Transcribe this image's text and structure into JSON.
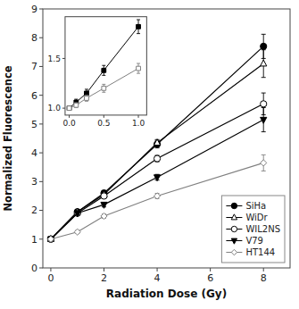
{
  "chart_data": [
    {
      "type": "line",
      "xlabel": "Radiation Dose (Gy)",
      "ylabel": "Normalized Fluorescence",
      "xlim": [
        -0.3,
        9
      ],
      "ylim": [
        0,
        9
      ],
      "xticks": [
        0,
        2,
        4,
        6,
        8
      ],
      "yticks": [
        0,
        1,
        2,
        3,
        4,
        5,
        6,
        7,
        8,
        9
      ],
      "grid": false,
      "legend": "lower right",
      "x": [
        0,
        1,
        2,
        4,
        8
      ],
      "series": [
        {
          "name": "SiHa",
          "color": "black",
          "marker": "circle",
          "values": [
            1.0,
            1.95,
            2.6,
            4.3,
            7.7
          ],
          "yerr": [
            0.04,
            0.07,
            0.09,
            0.13,
            0.42
          ]
        },
        {
          "name": "WiDr",
          "color": "black",
          "marker": "open-triangle-up",
          "values": [
            1.0,
            1.95,
            2.55,
            4.35,
            7.1
          ],
          "yerr": [
            0.04,
            0.07,
            0.09,
            0.11,
            0.48
          ]
        },
        {
          "name": "WIL2NS",
          "color": "black",
          "marker": "open-circle",
          "values": [
            1.0,
            1.9,
            2.5,
            3.8,
            5.7
          ],
          "yerr": [
            0.04,
            0.06,
            0.08,
            0.11,
            0.38
          ]
        },
        {
          "name": "V79",
          "color": "black",
          "marker": "triangle-down",
          "values": [
            1.0,
            1.9,
            2.2,
            3.15,
            5.15
          ],
          "yerr": [
            0.04,
            0.06,
            0.08,
            0.1,
            0.42
          ]
        },
        {
          "name": "HT144",
          "color": "gray",
          "marker": "open-diamond",
          "values": [
            1.0,
            1.25,
            1.8,
            2.5,
            3.65
          ],
          "yerr": [
            0.04,
            0.05,
            0.07,
            0.09,
            0.28
          ]
        }
      ]
    },
    {
      "type": "line",
      "xlim": [
        -0.06,
        1.12
      ],
      "ylim": [
        0.93,
        1.92
      ],
      "xticks": [
        {
          "value": 0,
          "label": "0.0"
        },
        0.5,
        {
          "value": 1,
          "label": "1.0"
        }
      ],
      "yticks": [
        {
          "value": 1,
          "label": "1.0"
        },
        1.5
      ],
      "grid": false,
      "x": [
        0,
        0.1,
        0.25,
        0.5,
        1.0
      ],
      "series": [
        {
          "color": "black",
          "marker": "square",
          "values": [
            1.0,
            1.06,
            1.15,
            1.38,
            1.82
          ],
          "yerr": [
            0.02,
            0.03,
            0.04,
            0.05,
            0.07
          ]
        },
        {
          "color": "gray",
          "marker": "open-square",
          "values": [
            1.0,
            1.03,
            1.1,
            1.2,
            1.4
          ],
          "yerr": [
            0.02,
            0.025,
            0.03,
            0.04,
            0.05
          ]
        }
      ]
    }
  ]
}
